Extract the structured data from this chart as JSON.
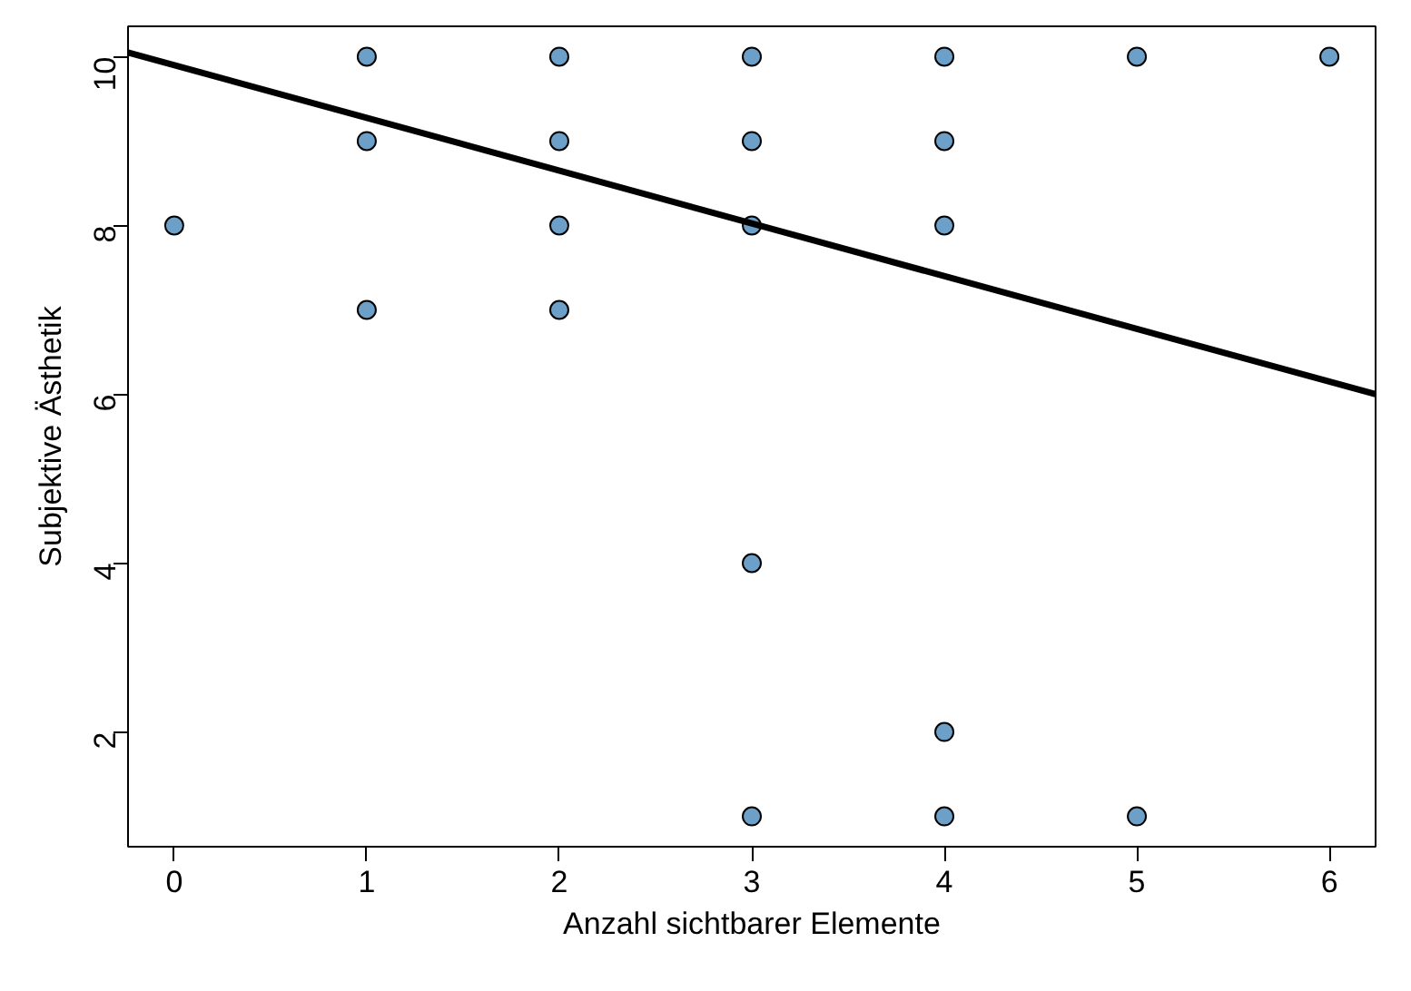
{
  "chart_data": {
    "type": "scatter",
    "xlabel": "Anzahl sichtbarer Elemente",
    "ylabel": "Subjektive Ästhetik",
    "xlim": [
      -0.24,
      6.24
    ],
    "ylim": [
      0.64,
      10.36
    ],
    "xticks": [
      0,
      1,
      2,
      3,
      4,
      5,
      6
    ],
    "yticks": [
      2,
      4,
      6,
      8,
      10
    ],
    "grid": false,
    "series": [
      {
        "color": "#6ca0c8",
        "marker": "circle",
        "x": [
          0,
          1,
          1,
          1,
          2,
          2,
          2,
          2,
          3,
          3,
          3,
          3,
          3,
          4,
          4,
          4,
          4,
          4,
          5,
          5,
          6
        ],
        "values": [
          8,
          10,
          9,
          7,
          10,
          9,
          8,
          7,
          10,
          9,
          8,
          4,
          1,
          10,
          9,
          8,
          2,
          1,
          10,
          1,
          10
        ]
      },
      {
        "type": "line",
        "color": "#000000",
        "x": [
          -0.24,
          6.24
        ],
        "values": [
          10.05,
          6.0
        ]
      }
    ]
  }
}
